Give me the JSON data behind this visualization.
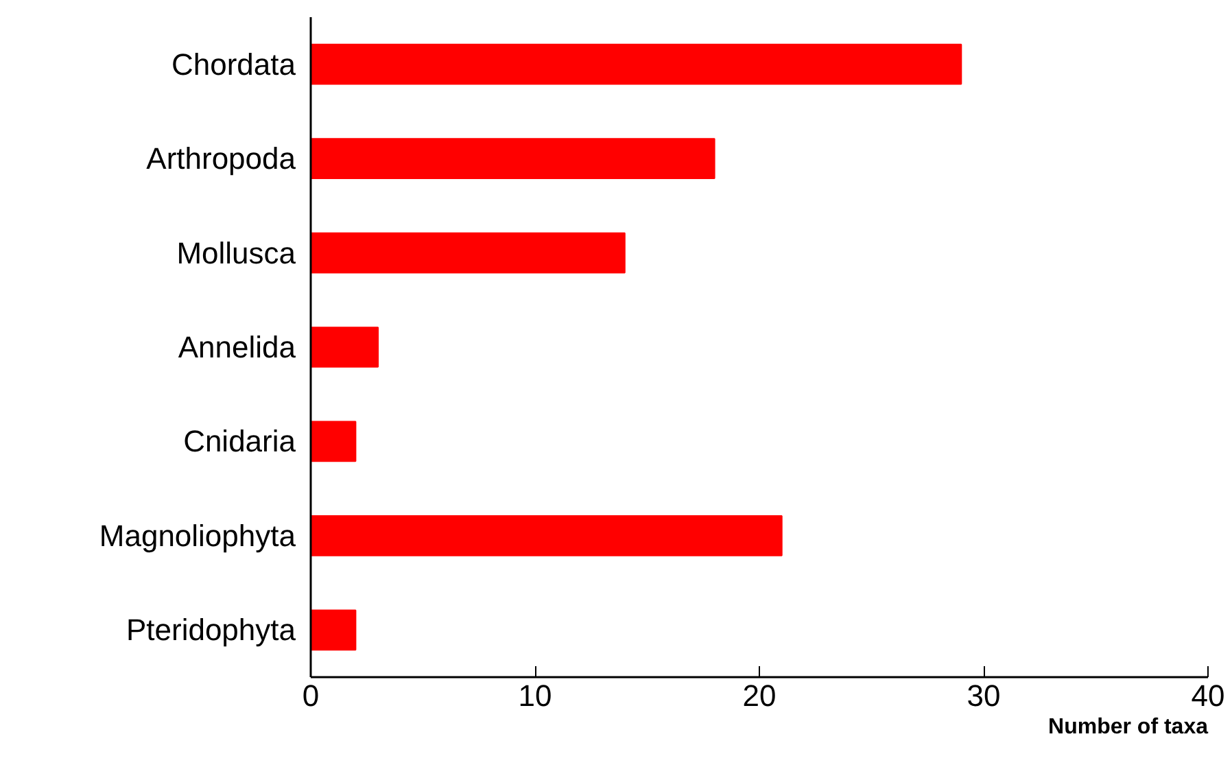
{
  "chart_data": {
    "type": "bar",
    "orientation": "horizontal",
    "xlabel": "Number of taxa",
    "categories": [
      "Chordata",
      "Arthropoda",
      "Mollusca",
      "Annelida",
      "Cnidaria",
      "Magnoliophyta",
      "Pteridophyta"
    ],
    "values": [
      29,
      18,
      14,
      3,
      2,
      21,
      2
    ],
    "color": "#ff0000",
    "xlim": [
      0,
      40
    ],
    "xticks": [
      0,
      10,
      20,
      30,
      40
    ],
    "grid": false
  }
}
